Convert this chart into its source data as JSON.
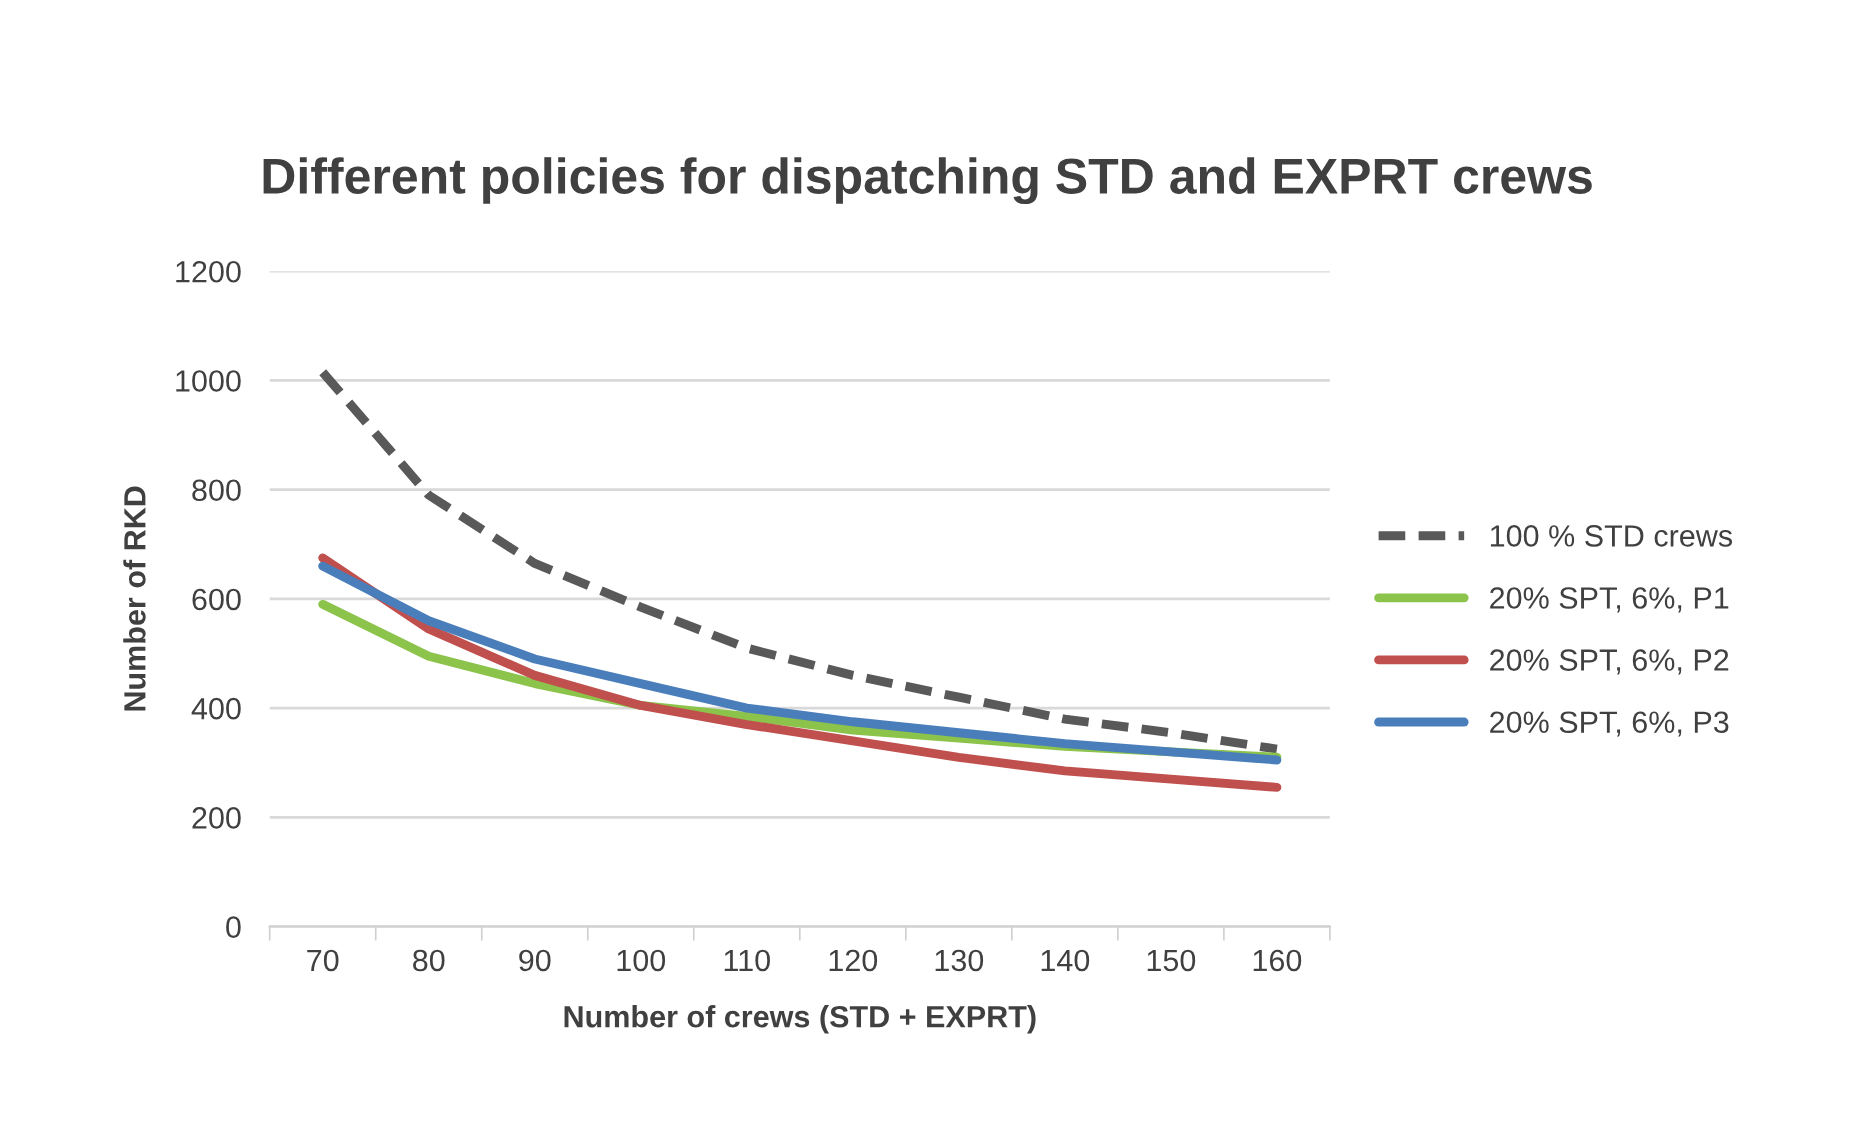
{
  "chart_data": {
    "type": "line",
    "title": "Different policies for dispatching STD and EXPRT crews",
    "xlabel": "Number of crews (STD + EXPRT)",
    "ylabel": "Number of RKD",
    "categories": [
      "70",
      "80",
      "90",
      "100",
      "110",
      "120",
      "130",
      "140",
      "150",
      "160"
    ],
    "series": [
      {
        "name": "100 % STD crews",
        "color": "#595959",
        "line_style": "dashed",
        "values": [
          1015,
          790,
          665,
          585,
          510,
          460,
          420,
          380,
          355,
          325
        ]
      },
      {
        "name": "20% SPT, 6%, P1",
        "color": "#8cc34b",
        "line_style": "solid",
        "values": [
          590,
          495,
          445,
          405,
          385,
          360,
          345,
          330,
          320,
          310
        ]
      },
      {
        "name": "20% SPT, 6%, P2",
        "color": "#c0504d",
        "line_style": "solid",
        "values": [
          675,
          545,
          460,
          405,
          370,
          340,
          310,
          285,
          270,
          255
        ]
      },
      {
        "name": "20% SPT, 6%, P3",
        "color": "#4a7ebb",
        "line_style": "solid",
        "values": [
          660,
          560,
          490,
          445,
          400,
          375,
          355,
          335,
          320,
          305
        ]
      }
    ],
    "ylim": [
      0,
      1200
    ],
    "yticks": [
      0,
      200,
      400,
      600,
      800,
      1000,
      1200
    ],
    "grid": "y",
    "legend": "right",
    "marker": "none"
  }
}
